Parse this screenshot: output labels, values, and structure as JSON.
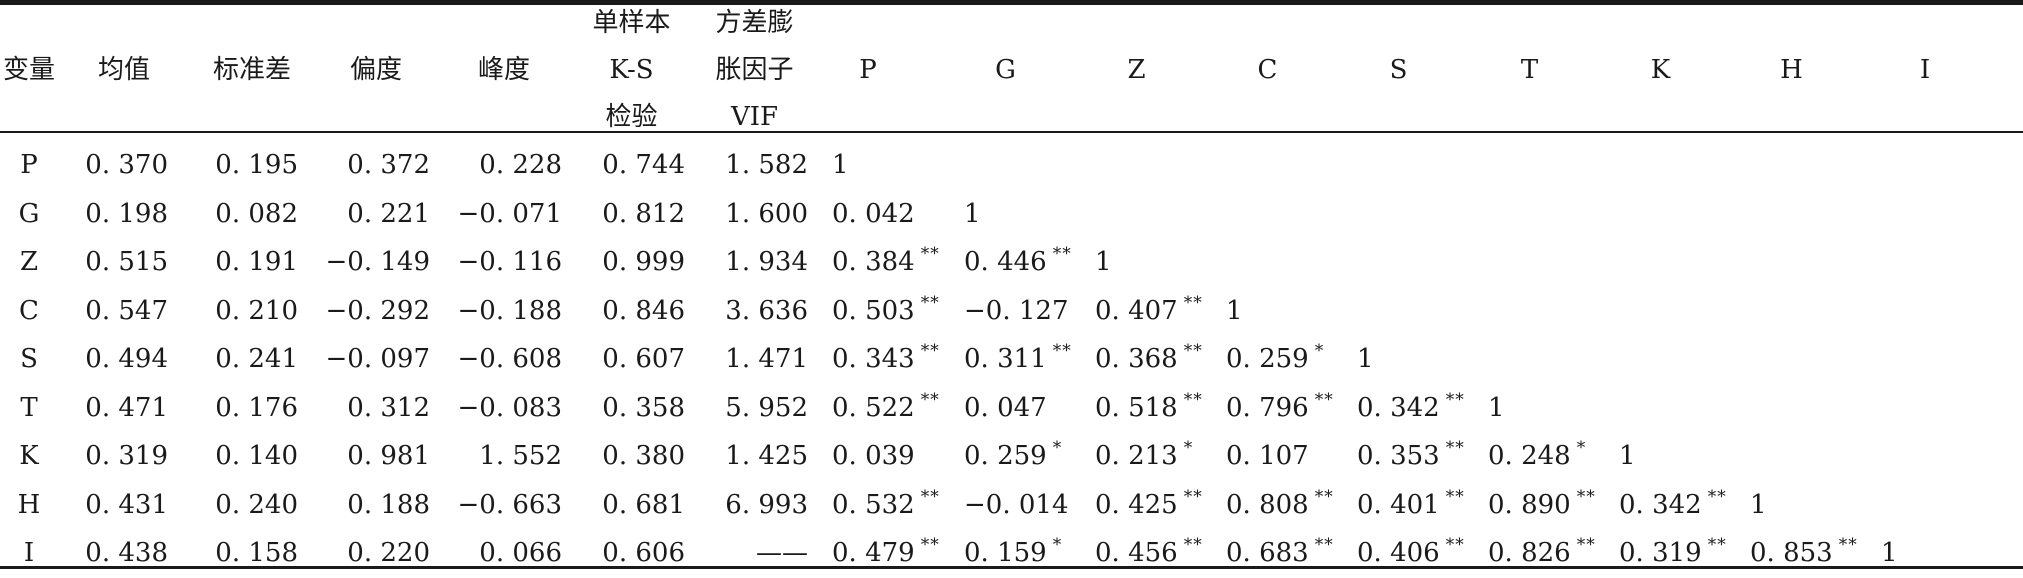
{
  "table": {
    "headers": {
      "variable": "变量",
      "mean": "均值",
      "std": "标准差",
      "skew": "偏度",
      "kurt": "峰度",
      "ks_line1": "单样本",
      "ks_line2": "K-S",
      "ks_line3": "检验",
      "vif_line1": "方差膨",
      "vif_line2": "胀因子",
      "vif_line3": "VIF",
      "corr": [
        "P",
        "G",
        "Z",
        "C",
        "S",
        "T",
        "K",
        "H",
        "I"
      ]
    },
    "rows": [
      {
        "var": "P",
        "mean": "0. 370",
        "std": "0. 195",
        "skew": "0. 372",
        "kurt": "0. 228",
        "ks": "0. 744",
        "vif": "1. 582",
        "corr": [
          {
            "v": "1",
            "s": ""
          }
        ]
      },
      {
        "var": "G",
        "mean": "0. 198",
        "std": "0. 082",
        "skew": "0. 221",
        "kurt": "−0. 071",
        "ks": "0. 812",
        "vif": "1. 600",
        "corr": [
          {
            "v": "0. 042",
            "s": ""
          },
          {
            "v": "1",
            "s": ""
          }
        ]
      },
      {
        "var": "Z",
        "mean": "0. 515",
        "std": "0. 191",
        "skew": "−0. 149",
        "kurt": "−0. 116",
        "ks": "0. 999",
        "vif": "1. 934",
        "corr": [
          {
            "v": "0. 384",
            "s": "**"
          },
          {
            "v": "0. 446",
            "s": "**"
          },
          {
            "v": "1",
            "s": ""
          }
        ]
      },
      {
        "var": "C",
        "mean": "0. 547",
        "std": "0. 210",
        "skew": "−0. 292",
        "kurt": "−0. 188",
        "ks": "0. 846",
        "vif": "3. 636",
        "corr": [
          {
            "v": "0. 503",
            "s": "**"
          },
          {
            "v": "−0. 127",
            "s": ""
          },
          {
            "v": "0. 407",
            "s": "**"
          },
          {
            "v": "1",
            "s": ""
          }
        ]
      },
      {
        "var": "S",
        "mean": "0. 494",
        "std": "0. 241",
        "skew": "−0. 097",
        "kurt": "−0. 608",
        "ks": "0. 607",
        "vif": "1. 471",
        "corr": [
          {
            "v": "0. 343",
            "s": "**"
          },
          {
            "v": "0. 311",
            "s": "**"
          },
          {
            "v": "0. 368",
            "s": "**"
          },
          {
            "v": "0. 259",
            "s": "*"
          },
          {
            "v": "1",
            "s": ""
          }
        ]
      },
      {
        "var": "T",
        "mean": "0. 471",
        "std": "0. 176",
        "skew": "0. 312",
        "kurt": "−0. 083",
        "ks": "0. 358",
        "vif": "5. 952",
        "corr": [
          {
            "v": "0. 522",
            "s": "**"
          },
          {
            "v": "0. 047",
            "s": ""
          },
          {
            "v": "0. 518",
            "s": "**"
          },
          {
            "v": "0. 796",
            "s": "**"
          },
          {
            "v": "0. 342",
            "s": "**"
          },
          {
            "v": "1",
            "s": ""
          }
        ]
      },
      {
        "var": "K",
        "mean": "0. 319",
        "std": "0. 140",
        "skew": "0. 981",
        "kurt": "1. 552",
        "ks": "0. 380",
        "vif": "1. 425",
        "corr": [
          {
            "v": "0. 039",
            "s": ""
          },
          {
            "v": "0. 259",
            "s": "*"
          },
          {
            "v": "0. 213",
            "s": "*"
          },
          {
            "v": "0. 107",
            "s": ""
          },
          {
            "v": "0. 353",
            "s": "**"
          },
          {
            "v": "0. 248",
            "s": "*"
          },
          {
            "v": "1",
            "s": ""
          }
        ]
      },
      {
        "var": "H",
        "mean": "0. 431",
        "std": "0. 240",
        "skew": "0. 188",
        "kurt": "−0. 663",
        "ks": "0. 681",
        "vif": "6. 993",
        "corr": [
          {
            "v": "0. 532",
            "s": "**"
          },
          {
            "v": "−0. 014",
            "s": ""
          },
          {
            "v": "0. 425",
            "s": "**"
          },
          {
            "v": "0. 808",
            "s": "**"
          },
          {
            "v": "0. 401",
            "s": "**"
          },
          {
            "v": "0. 890",
            "s": "**"
          },
          {
            "v": "0. 342",
            "s": "**"
          },
          {
            "v": "1",
            "s": ""
          }
        ]
      },
      {
        "var": "I",
        "mean": "0. 438",
        "std": "0. 158",
        "skew": "0. 220",
        "kurt": "0. 066",
        "ks": "0. 606",
        "vif": "——",
        "corr": [
          {
            "v": "0. 479",
            "s": "**"
          },
          {
            "v": "0. 159",
            "s": "*"
          },
          {
            "v": "0. 456",
            "s": "**"
          },
          {
            "v": "0. 683",
            "s": "**"
          },
          {
            "v": "0. 406",
            "s": "**"
          },
          {
            "v": "0. 826",
            "s": "**"
          },
          {
            "v": "0. 319",
            "s": "**"
          },
          {
            "v": "0. 853",
            "s": "**"
          },
          {
            "v": "1",
            "s": ""
          }
        ]
      }
    ]
  }
}
